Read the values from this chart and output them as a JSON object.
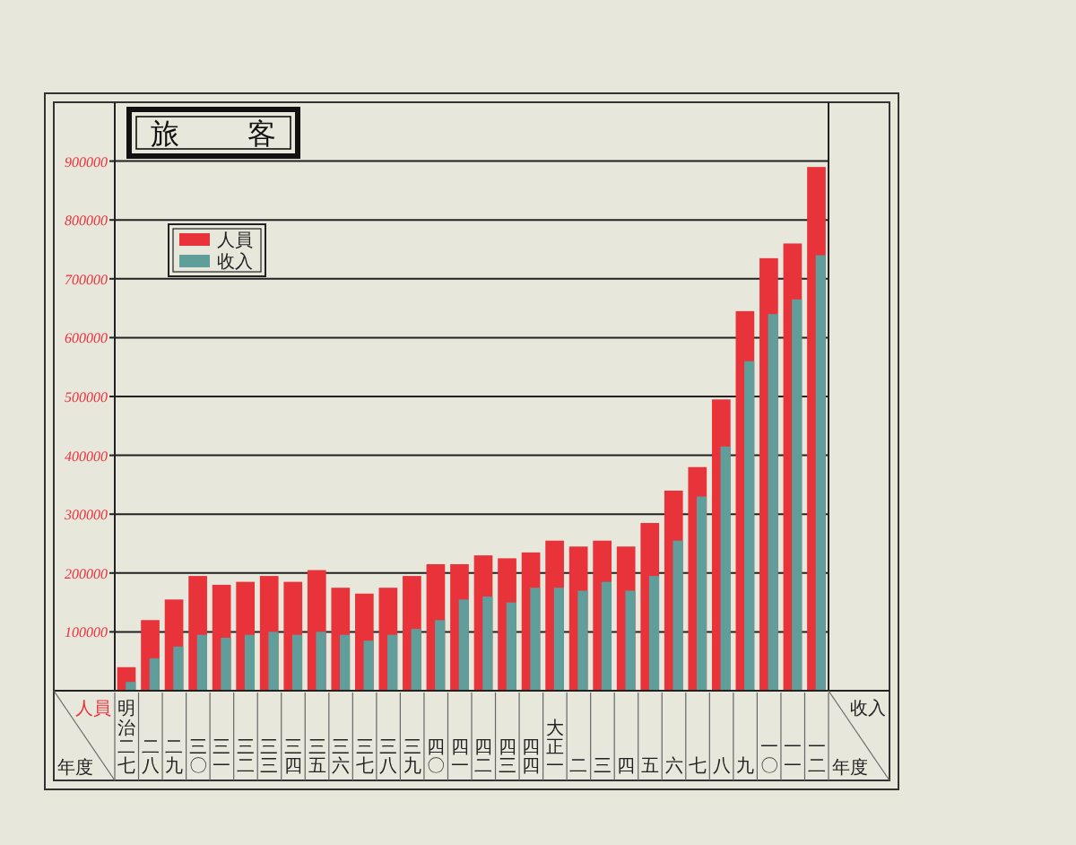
{
  "chart_data": {
    "type": "bar",
    "title": "旅客",
    "ylabel": "人員",
    "xlabel": "年度",
    "annotations": [
      "收入",
      "年度"
    ],
    "categories": [
      "明治二七",
      "二八",
      "二九",
      "三〇",
      "三一",
      "三二",
      "三三",
      "三四",
      "三五",
      "三六",
      "三七",
      "三八",
      "三九",
      "四〇",
      "四一",
      "四二",
      "四三",
      "四四",
      "大正一",
      "二",
      "三",
      "四",
      "五",
      "六",
      "七",
      "八",
      "九",
      "一〇",
      "一一",
      "一二"
    ],
    "series": [
      {
        "name": "人員",
        "color": "#e8333b",
        "values": [
          40000,
          120000,
          155000,
          195000,
          180000,
          185000,
          195000,
          185000,
          205000,
          175000,
          165000,
          175000,
          195000,
          215000,
          215000,
          230000,
          225000,
          235000,
          255000,
          245000,
          255000,
          245000,
          285000,
          340000,
          380000,
          495000,
          645000,
          735000,
          760000,
          890000
        ]
      },
      {
        "name": "收入",
        "color": "#5f9e9b",
        "values": [
          15000,
          55000,
          75000,
          95000,
          90000,
          95000,
          100000,
          95000,
          100000,
          95000,
          85000,
          95000,
          105000,
          120000,
          155000,
          160000,
          150000,
          175000,
          175000,
          170000,
          185000,
          170000,
          195000,
          255000,
          330000,
          415000,
          560000,
          640000,
          665000,
          740000
        ]
      }
    ],
    "ylim": [
      0,
      1000000
    ],
    "yticks": [
      100000,
      200000,
      300000,
      400000,
      500000,
      600000,
      700000,
      800000,
      900000
    ],
    "grid": "y",
    "legend": "top left"
  }
}
